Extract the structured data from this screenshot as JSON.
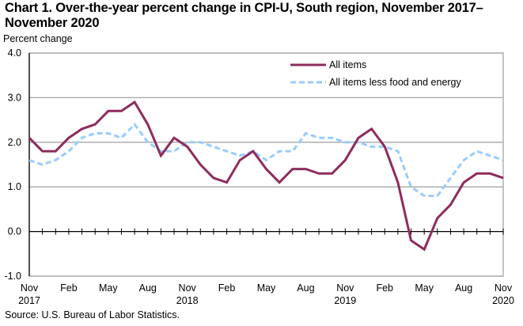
{
  "chart_data": {
    "type": "line",
    "title": "Chart 1. Over-the-year percent change in CPI-U, South region, November 2017–November 2020",
    "ylabel": "Percent change",
    "xlabel": "",
    "source": "Source: U.S. Bureau of Labor Statistics.",
    "ylim": [
      -1.0,
      4.0
    ],
    "yticks": [
      "4.0",
      "3.0",
      "2.0",
      "1.0",
      "0.0",
      "-1.0"
    ],
    "ytick_values": [
      4,
      3,
      2,
      1,
      0,
      -1
    ],
    "grid": true,
    "legend_position": "top-right",
    "x": [
      "Nov 2017",
      "Dec 2017",
      "Jan 2018",
      "Feb 2018",
      "Mar 2018",
      "Apr 2018",
      "May 2018",
      "Jun 2018",
      "Jul 2018",
      "Aug 2018",
      "Sep 2018",
      "Oct 2018",
      "Nov 2018",
      "Dec 2018",
      "Jan 2019",
      "Feb 2019",
      "Mar 2019",
      "Apr 2019",
      "May 2019",
      "Jun 2019",
      "Jul 2019",
      "Aug 2019",
      "Sep 2019",
      "Oct 2019",
      "Nov 2019",
      "Dec 2019",
      "Jan 2020",
      "Feb 2020",
      "Mar 2020",
      "Apr 2020",
      "May 2020",
      "Jun 2020",
      "Jul 2020",
      "Aug 2020",
      "Sep 2020",
      "Oct 2020",
      "Nov 2020"
    ],
    "xtick_labels": [
      {
        "index": 0,
        "line1": "Nov",
        "line2": "2017"
      },
      {
        "index": 3,
        "line1": "Feb",
        "line2": ""
      },
      {
        "index": 6,
        "line1": "May",
        "line2": ""
      },
      {
        "index": 9,
        "line1": "Aug",
        "line2": ""
      },
      {
        "index": 12,
        "line1": "Nov",
        "line2": "2018"
      },
      {
        "index": 15,
        "line1": "Feb",
        "line2": ""
      },
      {
        "index": 18,
        "line1": "May",
        "line2": ""
      },
      {
        "index": 21,
        "line1": "Aug",
        "line2": ""
      },
      {
        "index": 24,
        "line1": "Nov",
        "line2": "2019"
      },
      {
        "index": 27,
        "line1": "Feb",
        "line2": ""
      },
      {
        "index": 30,
        "line1": "May",
        "line2": ""
      },
      {
        "index": 33,
        "line1": "Aug",
        "line2": ""
      },
      {
        "index": 36,
        "line1": "Nov",
        "line2": "2020"
      }
    ],
    "series": [
      {
        "name": "All items",
        "color": "#8e2c5c",
        "style": "solid",
        "values": [
          2.1,
          1.8,
          1.8,
          2.1,
          2.3,
          2.4,
          2.7,
          2.7,
          2.9,
          2.4,
          1.7,
          2.1,
          1.9,
          1.5,
          1.2,
          1.1,
          1.6,
          1.8,
          1.4,
          1.1,
          1.4,
          1.4,
          1.3,
          1.3,
          1.6,
          2.1,
          2.3,
          1.9,
          1.1,
          -0.2,
          -0.4,
          0.3,
          0.6,
          1.1,
          1.3,
          1.3,
          1.2
        ]
      },
      {
        "name": "All items less food and energy",
        "color": "#99ccff",
        "style": "dashed",
        "values": [
          1.6,
          1.5,
          1.6,
          1.8,
          2.1,
          2.2,
          2.2,
          2.1,
          2.4,
          2.0,
          1.8,
          1.8,
          2.0,
          2.0,
          1.9,
          1.8,
          1.7,
          1.8,
          1.6,
          1.8,
          1.8,
          2.2,
          2.1,
          2.1,
          2.0,
          2.0,
          1.9,
          1.9,
          1.8,
          1.0,
          0.8,
          0.8,
          1.2,
          1.6,
          1.8,
          1.7,
          1.6
        ]
      }
    ]
  }
}
